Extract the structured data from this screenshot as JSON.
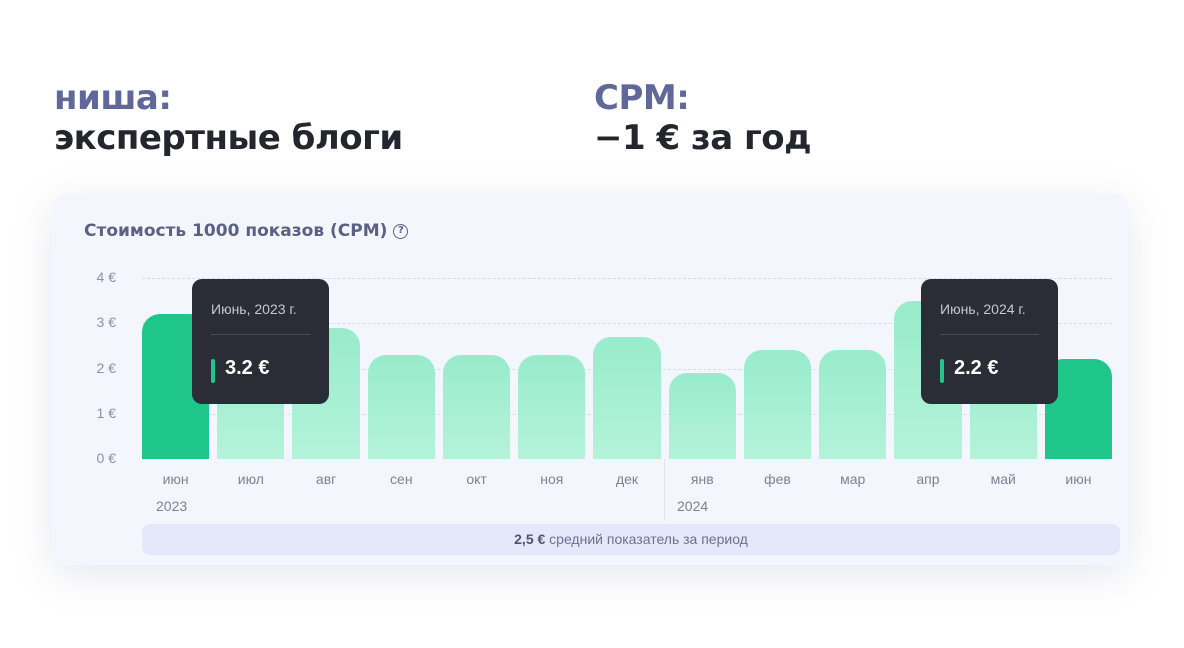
{
  "headline_left": {
    "label": "ниша:",
    "value": "экспертные блоги"
  },
  "headline_right": {
    "label": "CPM:",
    "value": "−1 € за год"
  },
  "card": {
    "title": "Стоимость 1000 показов (CPM)",
    "help_icon": "?",
    "average_value": "2,5 €",
    "average_text": " средний показатель за период"
  },
  "tooltips": [
    {
      "date": "Июнь, 2023 г.",
      "value": "3.2 €"
    },
    {
      "date": "Июнь, 2024 г.",
      "value": "2.2 €"
    }
  ],
  "years": [
    "2023",
    "2024"
  ],
  "colors": {
    "active_bar": "#1fc689",
    "bar": "#a6efd2",
    "tooltip_bg": "#2a2d35",
    "accent_label": "#5f6898"
  },
  "chart_data": {
    "type": "bar",
    "title": "Стоимость 1000 показов (CPM)",
    "xlabel": "",
    "ylabel": "€",
    "ylim": [
      0,
      4
    ],
    "yticks": [
      "0 €",
      "1 €",
      "2 €",
      "3 €",
      "4 €"
    ],
    "categories": [
      "июн",
      "июл",
      "авг",
      "сен",
      "окт",
      "ноя",
      "дек",
      "янв",
      "фев",
      "мар",
      "апр",
      "май",
      "июн"
    ],
    "year_groups": [
      {
        "year": "2023",
        "start_index": 0
      },
      {
        "year": "2024",
        "start_index": 7
      }
    ],
    "values": [
      3.2,
      2.8,
      2.9,
      2.3,
      2.3,
      2.3,
      2.7,
      1.9,
      2.4,
      2.4,
      3.5,
      2.6,
      2.2
    ],
    "highlighted_indices": [
      0,
      12
    ],
    "grid": true,
    "average": 2.5,
    "annotations": [
      "Июнь, 2023 г.: 3.2 €",
      "Июнь, 2024 г.: 2.2 €",
      "2,5 € средний показатель за период"
    ]
  }
}
